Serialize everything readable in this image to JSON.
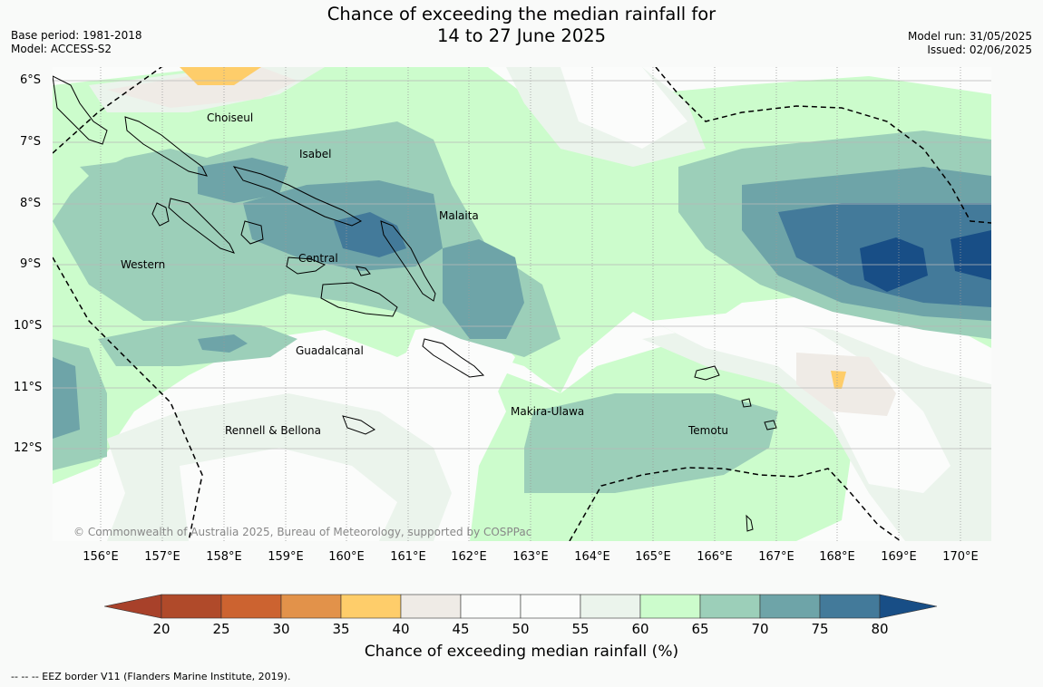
{
  "title": {
    "line1": "Chance of exceeding the median rainfall for",
    "line2": "14 to 27 June 2025"
  },
  "meta_left": {
    "base_period": "Base period: 1981-2018",
    "model": "Model: ACCESS-S2"
  },
  "meta_right": {
    "model_run": "Model run: 31/05/2025",
    "issued": "Issued: 02/06/2025"
  },
  "map": {
    "latitudes": [
      "6°S",
      "7°S",
      "8°S",
      "9°S",
      "10°S",
      "11°S",
      "12°S"
    ],
    "longitudes": [
      "156°E",
      "157°E",
      "158°E",
      "159°E",
      "160°E",
      "161°E",
      "162°E",
      "163°E",
      "164°E",
      "165°E",
      "166°E",
      "167°E",
      "168°E",
      "169°E",
      "170°E"
    ],
    "places": {
      "choiseul": "Choiseul",
      "isabel": "Isabel",
      "malaita": "Malaita",
      "western": "Western",
      "central": "Central",
      "guadalcanal": "Guadalcanal",
      "makira_ulawa": "Makira-Ulawa",
      "temotu": "Temotu",
      "rennell_bellona": "Rennell & Bellona"
    },
    "copyright": "© Commonwealth of Australia 2025, Bureau of Meteorology, supported by COSPPac"
  },
  "colorbar": {
    "ticks": [
      "20",
      "25",
      "30",
      "35",
      "40",
      "45",
      "50",
      "55",
      "60",
      "65",
      "70",
      "75",
      "80"
    ],
    "colors": [
      "#a8412a",
      "#b04a2a",
      "#cc6330",
      "#e2924a",
      "#fecd6a",
      "#efebe6",
      "#fbfcfb",
      "#fbfcfb",
      "#ebf4ec",
      "#ccfccc",
      "#9ccfb9",
      "#6ea4a8",
      "#437a9a",
      "#184e86"
    ],
    "label": "Chance of exceeding median rainfall (%)"
  },
  "footer": "--  --  -- EEZ border V11 (Flanders Marine Institute, 2019)."
}
